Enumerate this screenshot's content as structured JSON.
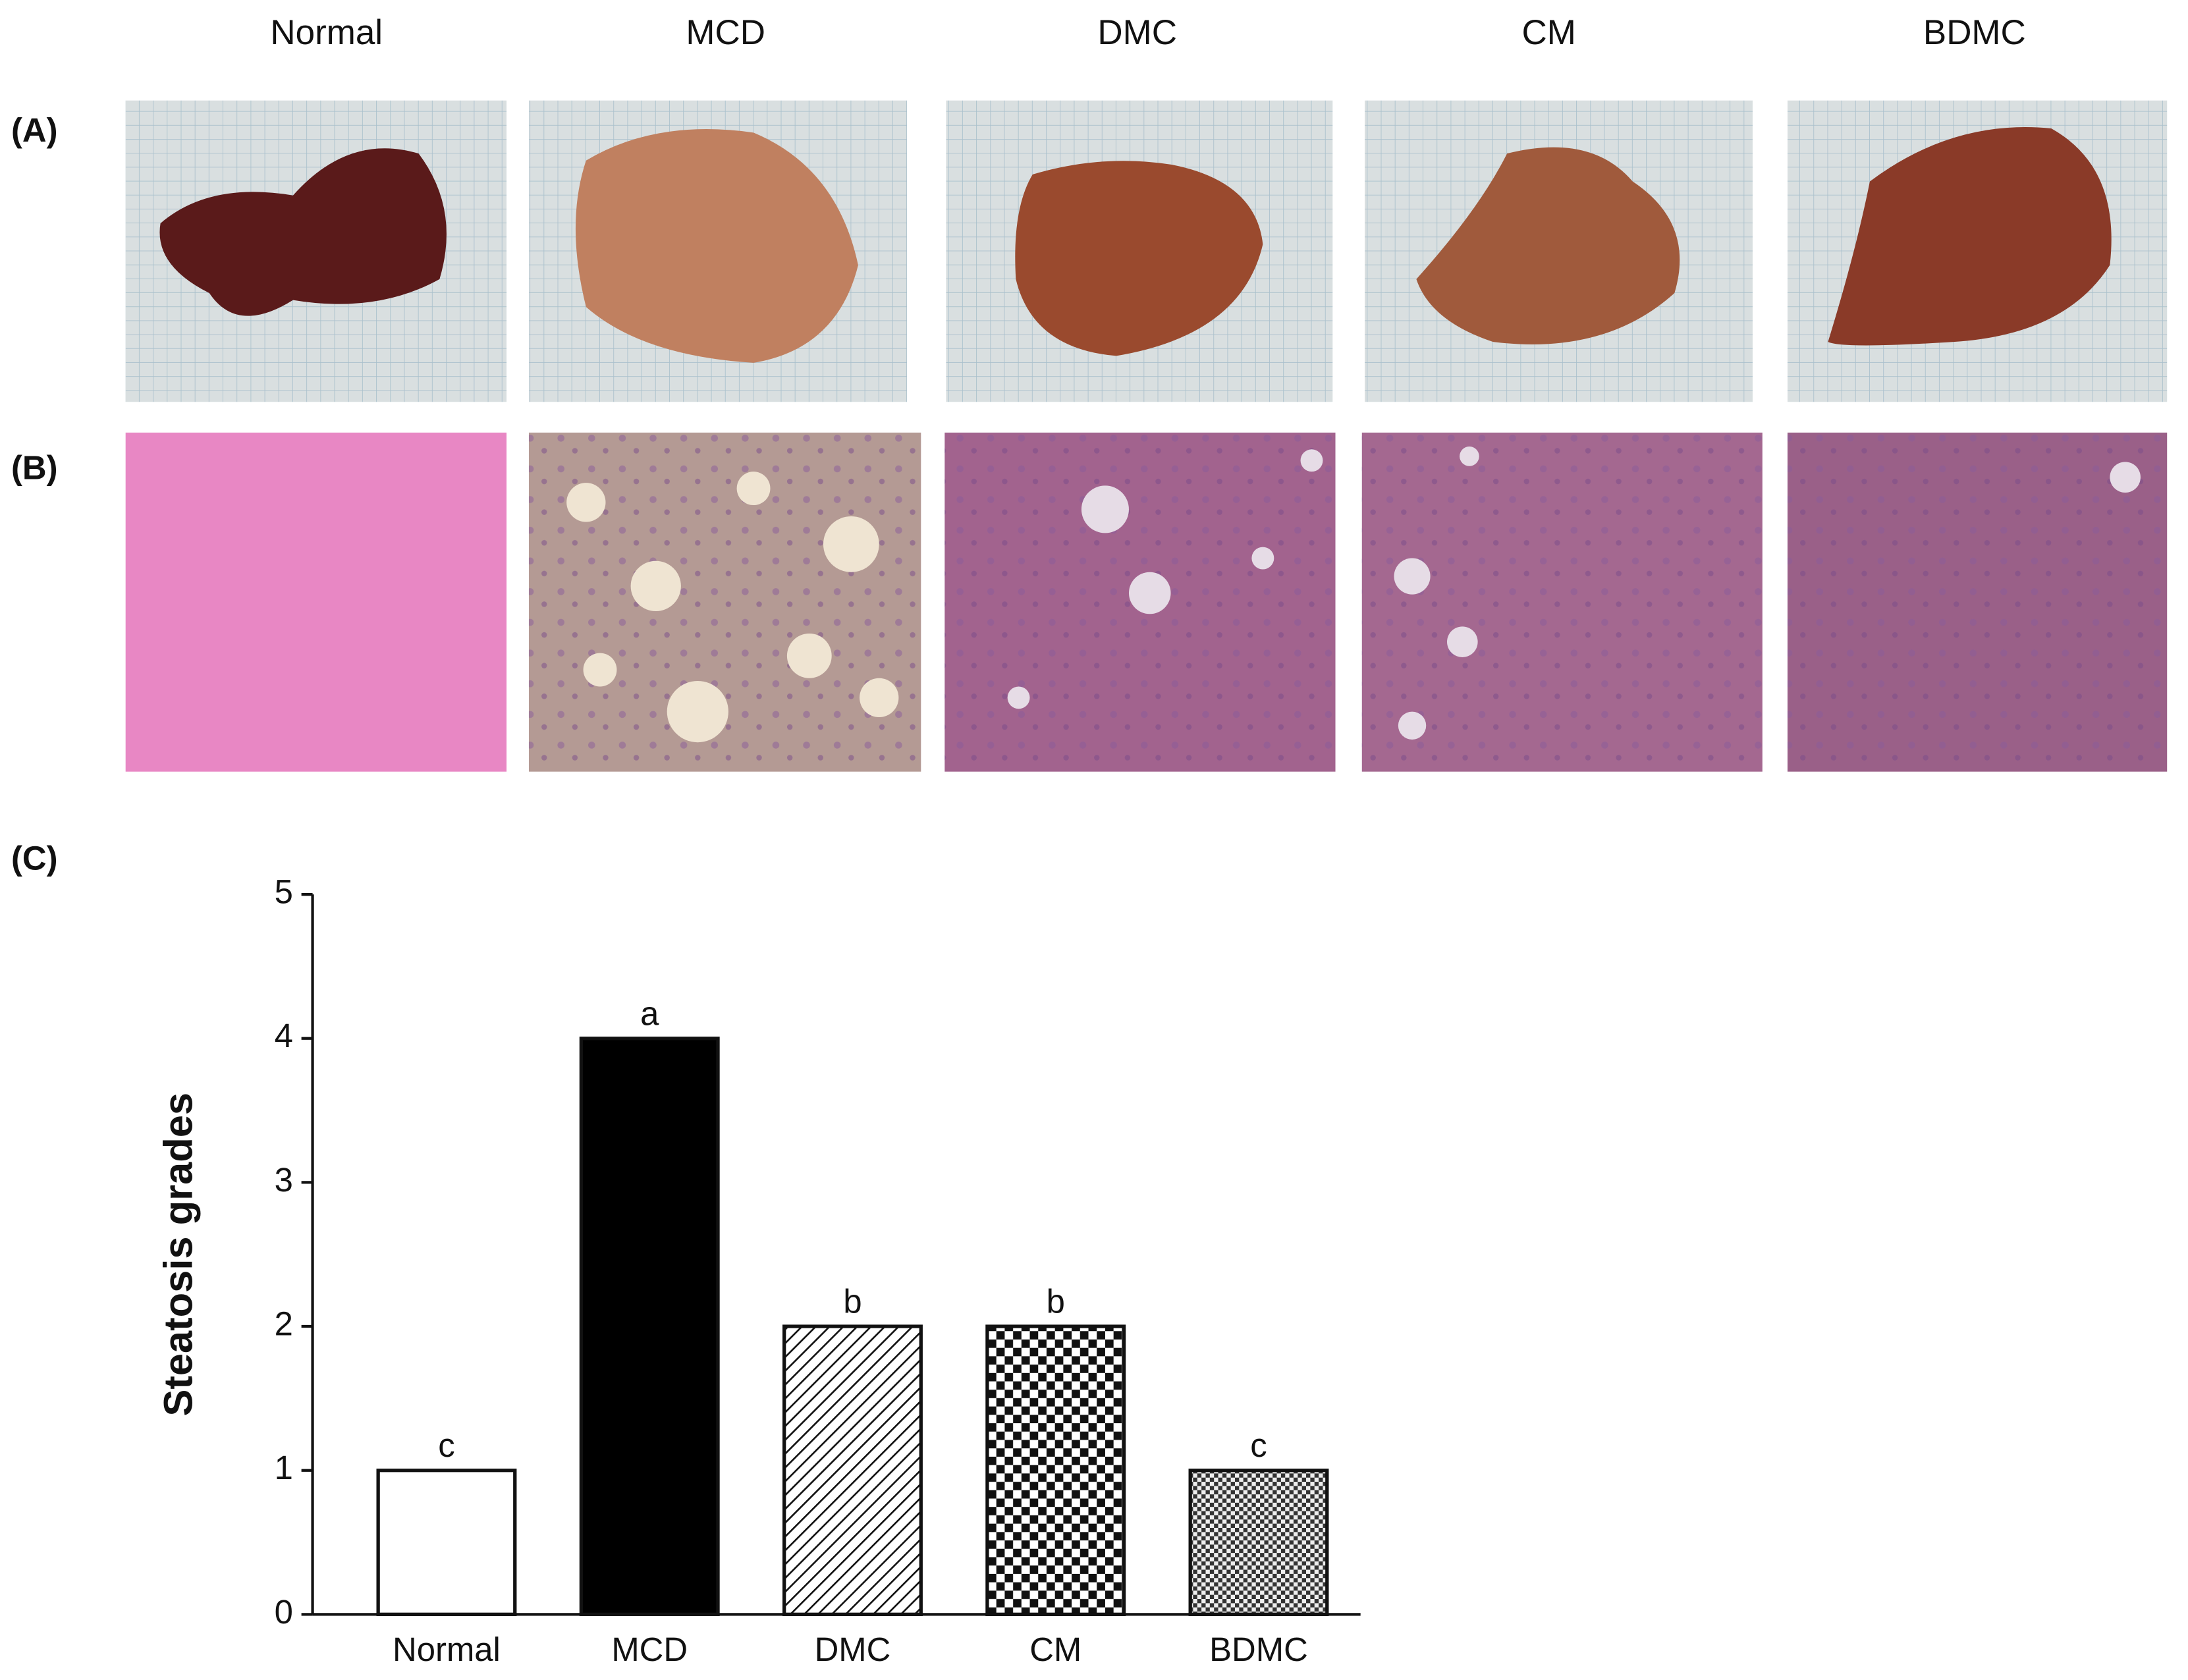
{
  "column_labels": [
    "Normal",
    "MCD",
    "DMC",
    "CM",
    "BDMC"
  ],
  "panel_labels": [
    "(A)",
    "(B)",
    "(C)"
  ],
  "chart_data": {
    "type": "bar",
    "ylabel": "Steatosis grades",
    "categories": [
      "Normal",
      "MCD",
      "DMC",
      "CM",
      "BDMC"
    ],
    "values": [
      1,
      4,
      2,
      2,
      1
    ],
    "annotations": [
      "c",
      "a",
      "b",
      "b",
      "c"
    ],
    "patterns": [
      "white",
      "black",
      "hatch",
      "check",
      "finecheck"
    ],
    "ylim": [
      0,
      5
    ],
    "yticks": [
      0,
      1,
      2,
      3,
      4,
      5
    ]
  }
}
